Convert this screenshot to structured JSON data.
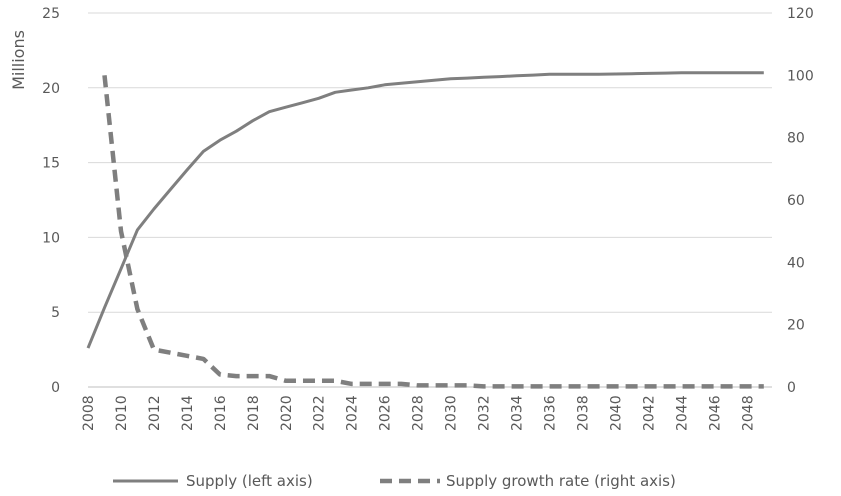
{
  "chart_data": {
    "type": "line",
    "title": "",
    "xlabel": "",
    "ylabel": "Millions",
    "y2label": "",
    "grid": true,
    "legend_position": "bottom",
    "x_ticks": [
      "2008",
      "2010",
      "2012",
      "2014",
      "2016",
      "2018",
      "2020",
      "2022",
      "2024",
      "2026",
      "2028",
      "2030",
      "2032",
      "2034",
      "2036",
      "2038",
      "2040",
      "2042",
      "2044",
      "2046",
      "2048"
    ],
    "ylim": [
      0,
      25
    ],
    "y_ticks": [
      "0",
      "5",
      "10",
      "15",
      "20",
      "25"
    ],
    "y2lim": [
      0,
      120
    ],
    "y2_ticks": [
      "0",
      "20",
      "40",
      "60",
      "80",
      "100",
      "120"
    ],
    "x": [
      2008,
      2009,
      2010,
      2011,
      2012,
      2013,
      2014,
      2015,
      2016,
      2017,
      2018,
      2019,
      2020,
      2021,
      2022,
      2023,
      2024,
      2025,
      2026,
      2027,
      2028,
      2029,
      2030,
      2031,
      2032,
      2033,
      2034,
      2035,
      2036,
      2037,
      2038,
      2039,
      2040,
      2041,
      2042,
      2043,
      2044,
      2045,
      2046,
      2047,
      2048,
      2049
    ],
    "series": [
      {
        "name": "Supply (left axis)",
        "axis": "left",
        "style": "solid",
        "color": "#7f7f7f",
        "values": [
          2.6,
          5.3,
          7.9,
          10.5,
          11.9,
          13.2,
          14.5,
          15.75,
          16.5,
          17.1,
          17.8,
          18.4,
          18.7,
          19.0,
          19.3,
          19.7,
          19.85,
          20.0,
          20.2,
          20.3,
          20.4,
          20.5,
          20.6,
          20.65,
          20.7,
          20.75,
          20.8,
          20.85,
          20.9,
          20.9,
          20.9,
          20.9,
          20.92,
          20.94,
          20.96,
          20.98,
          21.0,
          21.0,
          21.0,
          21.0,
          21.0,
          21.0
        ]
      },
      {
        "name": "Supply growth rate (right axis)",
        "axis": "right",
        "style": "dashed",
        "color": "#7f7f7f",
        "values": [
          null,
          100,
          50,
          25,
          12,
          11,
          10,
          9,
          4,
          3.5,
          3.5,
          3.5,
          2,
          2,
          2,
          2,
          1,
          1,
          1,
          1,
          0.5,
          0.5,
          0.5,
          0.5,
          0.2,
          0.2,
          0.2,
          0.2,
          0.2,
          0.2,
          0.2,
          0.2,
          0.2,
          0.2,
          0.2,
          0.2,
          0.2,
          0.2,
          0.2,
          0.2,
          0.2,
          0.2
        ]
      }
    ]
  }
}
